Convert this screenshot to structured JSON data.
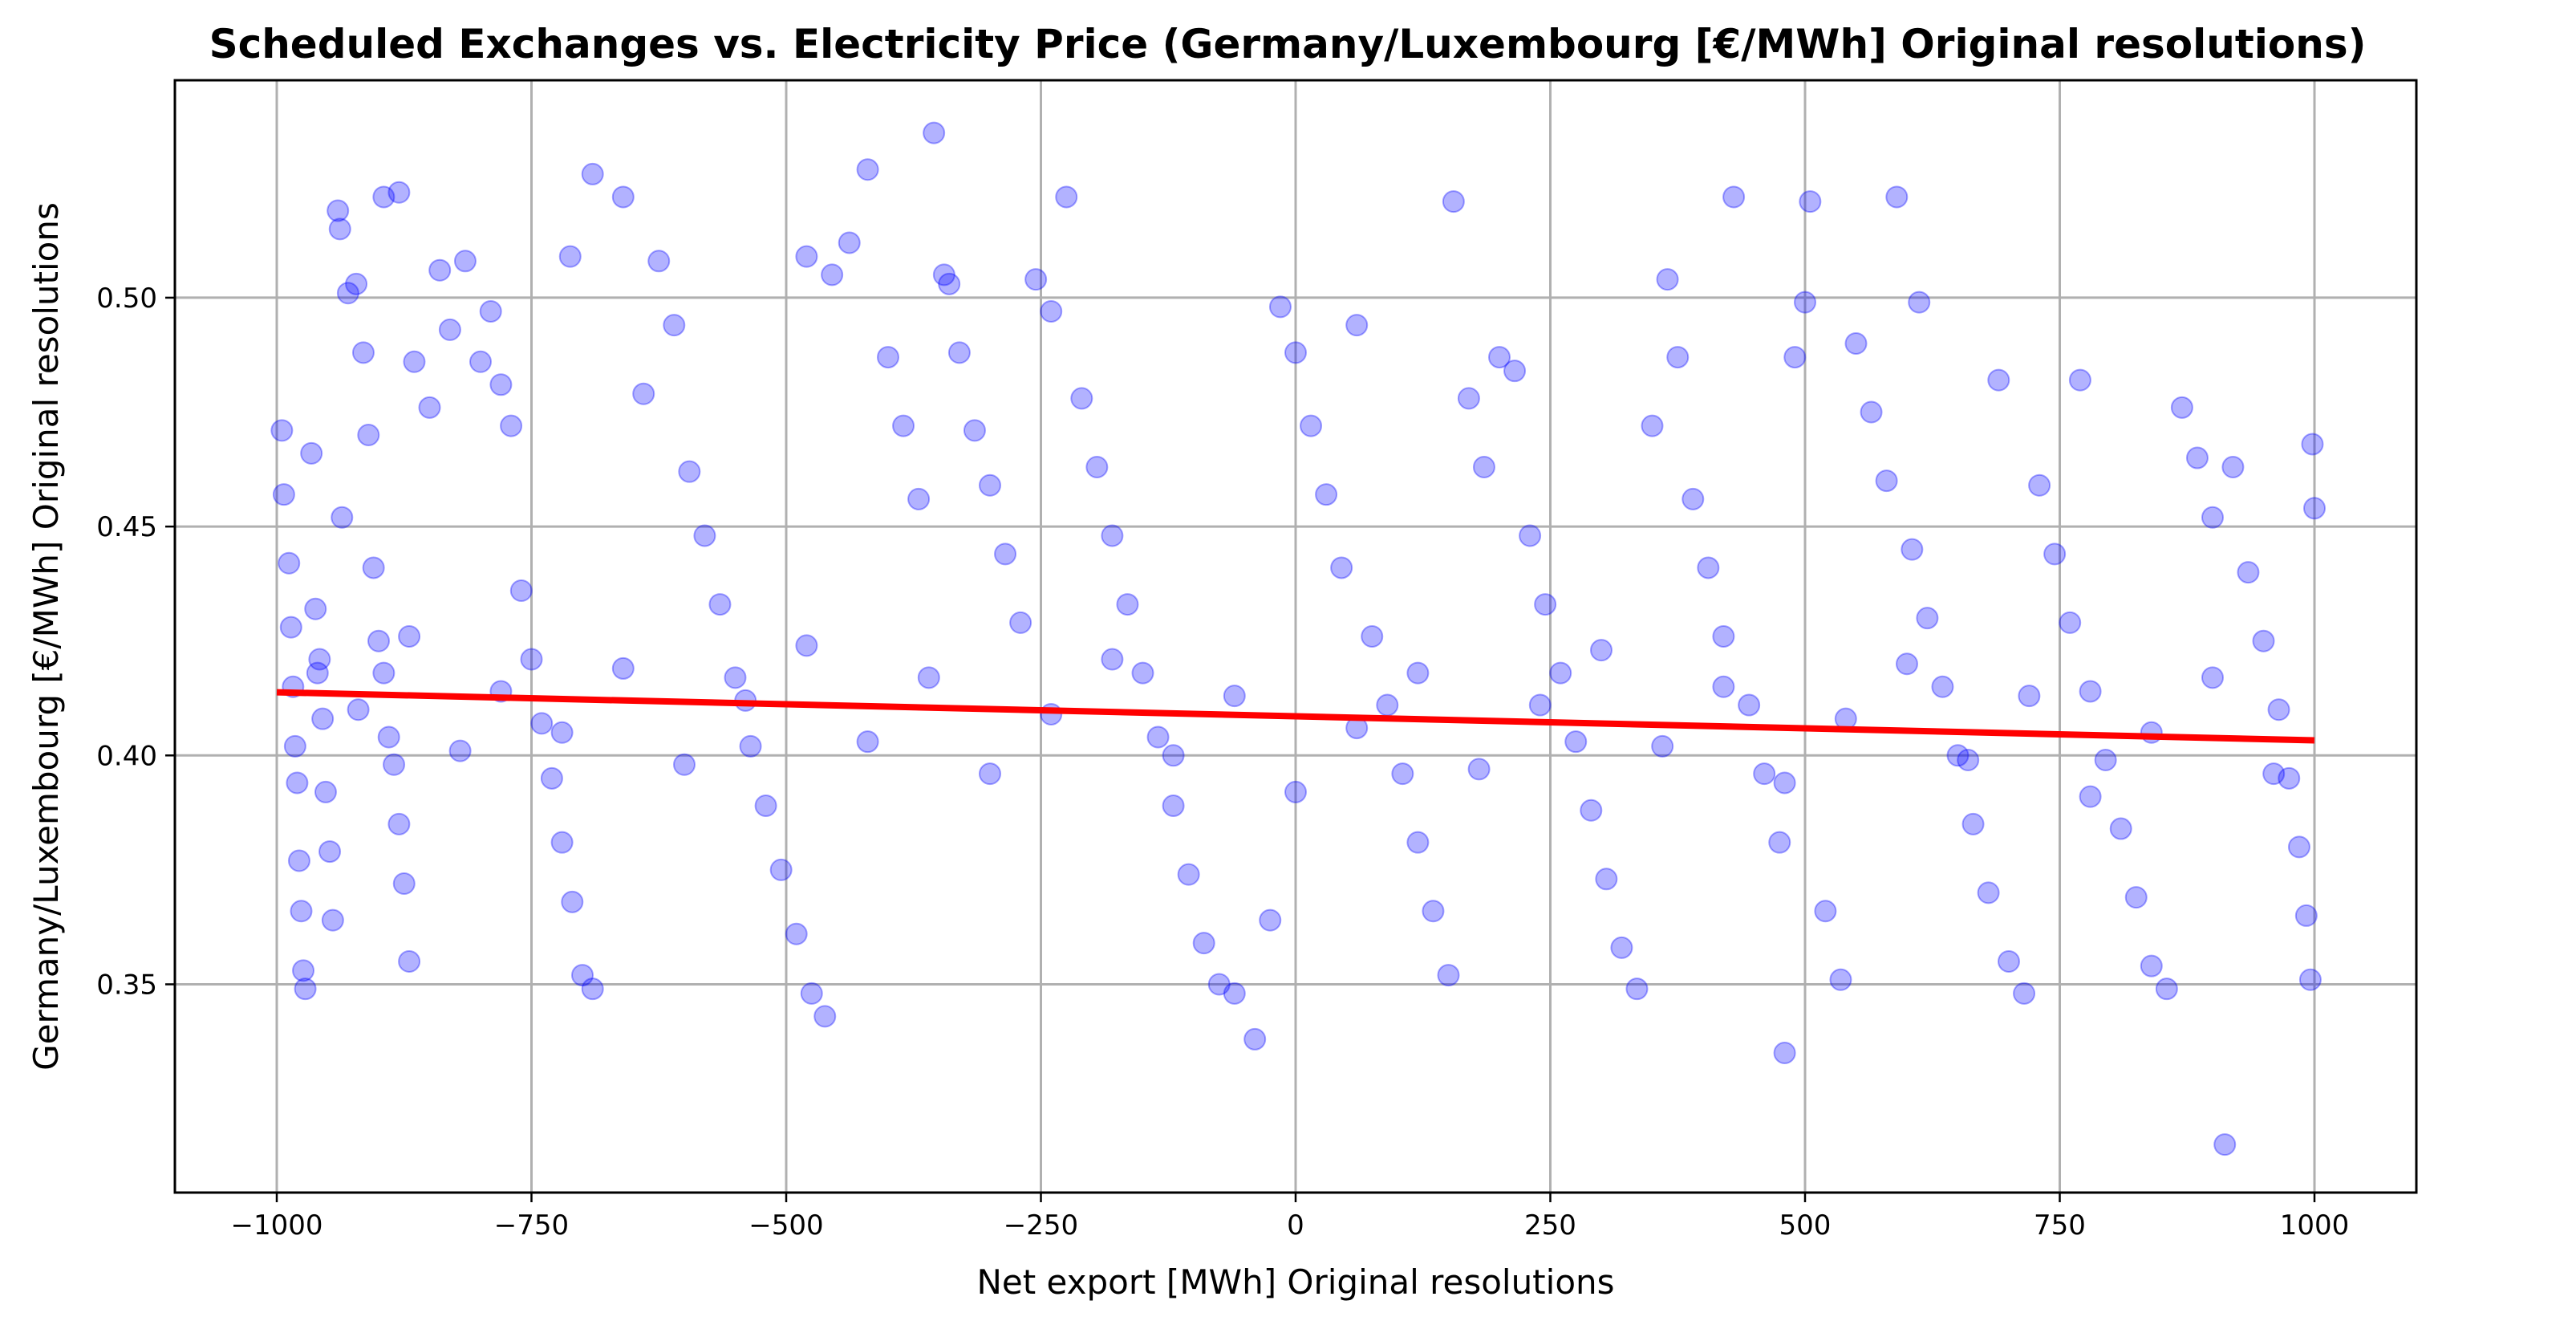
{
  "chart_data": {
    "type": "scatter",
    "title": "Scheduled Exchanges vs. Electricity Price (Germany/Luxembourg [€/MWh] Original resolutions)",
    "xlabel": "Net export [MWh] Original resolutions",
    "ylabel": "Germany/Luxembourg [€/MWh] Original resolutions",
    "xlim": [
      -1100,
      1100
    ],
    "ylim": [
      0.3045,
      0.5475
    ],
    "xticks": [
      -1000,
      -750,
      -500,
      -250,
      0,
      250,
      500,
      750,
      1000
    ],
    "xtick_labels": [
      "−1000",
      "−750",
      "−500",
      "−250",
      "0",
      "250",
      "500",
      "750",
      "1000"
    ],
    "yticks": [
      0.35,
      0.4,
      0.45,
      0.5
    ],
    "ytick_labels": [
      "0.35",
      "0.40",
      "0.45",
      "0.50"
    ],
    "grid": true,
    "colors": {
      "points": "#0000ff",
      "trend": "#ff0000"
    },
    "series": [
      {
        "kind": "scatter",
        "points": [
          [
            -995,
            0.471
          ],
          [
            -993,
            0.457
          ],
          [
            -988,
            0.442
          ],
          [
            -986,
            0.428
          ],
          [
            -984,
            0.415
          ],
          [
            -982,
            0.402
          ],
          [
            -980,
            0.394
          ],
          [
            -978,
            0.377
          ],
          [
            -976,
            0.366
          ],
          [
            -974,
            0.353
          ],
          [
            -972,
            0.349
          ],
          [
            -966,
            0.466
          ],
          [
            -962,
            0.432
          ],
          [
            -958,
            0.421
          ],
          [
            -955,
            0.408
          ],
          [
            -952,
            0.392
          ],
          [
            -948,
            0.379
          ],
          [
            -945,
            0.364
          ],
          [
            -940,
            0.519
          ],
          [
            -938,
            0.515
          ],
          [
            -936,
            0.452
          ],
          [
            -930,
            0.501
          ],
          [
            -922,
            0.503
          ],
          [
            -915,
            0.488
          ],
          [
            -910,
            0.47
          ],
          [
            -905,
            0.441
          ],
          [
            -900,
            0.425
          ],
          [
            -895,
            0.418
          ],
          [
            -890,
            0.404
          ],
          [
            -885,
            0.398
          ],
          [
            -880,
            0.385
          ],
          [
            -875,
            0.372
          ],
          [
            -870,
            0.355
          ],
          [
            -895,
            0.522
          ],
          [
            -880,
            0.523
          ],
          [
            -865,
            0.486
          ],
          [
            -850,
            0.476
          ],
          [
            -840,
            0.506
          ],
          [
            -830,
            0.493
          ],
          [
            -815,
            0.508
          ],
          [
            -800,
            0.486
          ],
          [
            -790,
            0.497
          ],
          [
            -780,
            0.481
          ],
          [
            -770,
            0.472
          ],
          [
            -760,
            0.436
          ],
          [
            -750,
            0.421
          ],
          [
            -740,
            0.407
          ],
          [
            -730,
            0.395
          ],
          [
            -720,
            0.381
          ],
          [
            -710,
            0.368
          ],
          [
            -700,
            0.352
          ],
          [
            -690,
            0.349
          ],
          [
            -712,
            0.509
          ],
          [
            -690,
            0.527
          ],
          [
            -660,
            0.522
          ],
          [
            -640,
            0.479
          ],
          [
            -625,
            0.508
          ],
          [
            -610,
            0.494
          ],
          [
            -595,
            0.462
          ],
          [
            -580,
            0.448
          ],
          [
            -565,
            0.433
          ],
          [
            -550,
            0.417
          ],
          [
            -535,
            0.402
          ],
          [
            -520,
            0.389
          ],
          [
            -505,
            0.375
          ],
          [
            -490,
            0.361
          ],
          [
            -475,
            0.348
          ],
          [
            -462,
            0.343
          ],
          [
            -480,
            0.509
          ],
          [
            -455,
            0.505
          ],
          [
            -438,
            0.512
          ],
          [
            -420,
            0.528
          ],
          [
            -400,
            0.487
          ],
          [
            -385,
            0.472
          ],
          [
            -370,
            0.456
          ],
          [
            -355,
            0.536
          ],
          [
            -345,
            0.505
          ],
          [
            -340,
            0.503
          ],
          [
            -330,
            0.488
          ],
          [
            -315,
            0.471
          ],
          [
            -300,
            0.459
          ],
          [
            -285,
            0.444
          ],
          [
            -270,
            0.429
          ],
          [
            -255,
            0.504
          ],
          [
            -240,
            0.497
          ],
          [
            -225,
            0.522
          ],
          [
            -210,
            0.478
          ],
          [
            -195,
            0.463
          ],
          [
            -180,
            0.448
          ],
          [
            -165,
            0.433
          ],
          [
            -150,
            0.418
          ],
          [
            -135,
            0.404
          ],
          [
            -120,
            0.389
          ],
          [
            -105,
            0.374
          ],
          [
            -90,
            0.359
          ],
          [
            -75,
            0.35
          ],
          [
            -60,
            0.348
          ],
          [
            -40,
            0.338
          ],
          [
            -25,
            0.364
          ],
          [
            -15,
            0.498
          ],
          [
            0,
            0.488
          ],
          [
            15,
            0.472
          ],
          [
            30,
            0.457
          ],
          [
            45,
            0.441
          ],
          [
            60,
            0.494
          ],
          [
            75,
            0.426
          ],
          [
            90,
            0.411
          ],
          [
            105,
            0.396
          ],
          [
            120,
            0.381
          ],
          [
            135,
            0.366
          ],
          [
            150,
            0.352
          ],
          [
            155,
            0.521
          ],
          [
            170,
            0.478
          ],
          [
            185,
            0.463
          ],
          [
            200,
            0.487
          ],
          [
            215,
            0.484
          ],
          [
            230,
            0.448
          ],
          [
            245,
            0.433
          ],
          [
            260,
            0.418
          ],
          [
            275,
            0.403
          ],
          [
            290,
            0.388
          ],
          [
            305,
            0.373
          ],
          [
            320,
            0.358
          ],
          [
            335,
            0.349
          ],
          [
            350,
            0.472
          ],
          [
            365,
            0.504
          ],
          [
            375,
            0.487
          ],
          [
            390,
            0.456
          ],
          [
            405,
            0.441
          ],
          [
            420,
            0.426
          ],
          [
            430,
            0.522
          ],
          [
            445,
            0.411
          ],
          [
            460,
            0.396
          ],
          [
            475,
            0.381
          ],
          [
            480,
            0.335
          ],
          [
            490,
            0.487
          ],
          [
            500,
            0.499
          ],
          [
            505,
            0.521
          ],
          [
            520,
            0.366
          ],
          [
            535,
            0.351
          ],
          [
            550,
            0.49
          ],
          [
            565,
            0.475
          ],
          [
            580,
            0.46
          ],
          [
            590,
            0.522
          ],
          [
            605,
            0.445
          ],
          [
            612,
            0.499
          ],
          [
            620,
            0.43
          ],
          [
            635,
            0.415
          ],
          [
            650,
            0.4
          ],
          [
            665,
            0.385
          ],
          [
            680,
            0.37
          ],
          [
            690,
            0.482
          ],
          [
            700,
            0.355
          ],
          [
            715,
            0.348
          ],
          [
            730,
            0.459
          ],
          [
            745,
            0.444
          ],
          [
            760,
            0.429
          ],
          [
            770,
            0.482
          ],
          [
            780,
            0.414
          ],
          [
            795,
            0.399
          ],
          [
            810,
            0.384
          ],
          [
            825,
            0.369
          ],
          [
            840,
            0.354
          ],
          [
            855,
            0.349
          ],
          [
            870,
            0.476
          ],
          [
            885,
            0.465
          ],
          [
            900,
            0.452
          ],
          [
            912,
            0.315
          ],
          [
            920,
            0.463
          ],
          [
            935,
            0.44
          ],
          [
            950,
            0.425
          ],
          [
            965,
            0.41
          ],
          [
            975,
            0.395
          ],
          [
            985,
            0.38
          ],
          [
            992,
            0.365
          ],
          [
            996,
            0.351
          ],
          [
            998,
            0.468
          ],
          [
            1000,
            0.454
          ],
          [
            -960,
            0.418
          ],
          [
            -920,
            0.41
          ],
          [
            -870,
            0.426
          ],
          [
            -820,
            0.401
          ],
          [
            -780,
            0.414
          ],
          [
            -720,
            0.405
          ],
          [
            -660,
            0.419
          ],
          [
            -600,
            0.398
          ],
          [
            -540,
            0.412
          ],
          [
            -480,
            0.424
          ],
          [
            -420,
            0.403
          ],
          [
            -360,
            0.417
          ],
          [
            -300,
            0.396
          ],
          [
            -240,
            0.409
          ],
          [
            -180,
            0.421
          ],
          [
            -120,
            0.4
          ],
          [
            -60,
            0.413
          ],
          [
            0,
            0.392
          ],
          [
            60,
            0.406
          ],
          [
            120,
            0.418
          ],
          [
            180,
            0.397
          ],
          [
            240,
            0.411
          ],
          [
            300,
            0.423
          ],
          [
            360,
            0.402
          ],
          [
            420,
            0.415
          ],
          [
            480,
            0.394
          ],
          [
            540,
            0.408
          ],
          [
            600,
            0.42
          ],
          [
            660,
            0.399
          ],
          [
            720,
            0.413
          ],
          [
            780,
            0.391
          ],
          [
            840,
            0.405
          ],
          [
            900,
            0.417
          ],
          [
            960,
            0.396
          ]
        ]
      },
      {
        "kind": "trendline",
        "x": [
          -1000,
          1000
        ],
        "y": [
          0.4138,
          0.4033
        ]
      }
    ]
  }
}
